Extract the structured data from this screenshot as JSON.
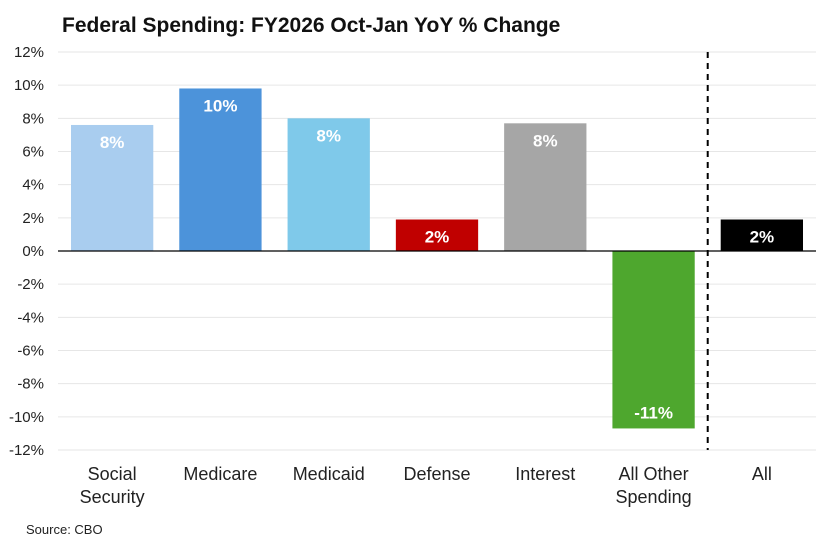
{
  "chart_data": {
    "type": "bar",
    "title": "Federal Spending: FY2026 Oct-Jan YoY % Change",
    "source": "Source: CBO",
    "categories": [
      [
        "Social",
        "Security"
      ],
      [
        "Medicare"
      ],
      [
        "Medicaid"
      ],
      [
        "Defense"
      ],
      [
        "Interest"
      ],
      [
        "All Other",
        "Spending"
      ],
      [
        "All"
      ]
    ],
    "values": [
      7.6,
      9.8,
      8.0,
      1.9,
      7.7,
      -10.7,
      1.9
    ],
    "data_labels": [
      "8%",
      "10%",
      "8%",
      "2%",
      "8%",
      "-11%",
      "2%"
    ],
    "colors": [
      "#a9cdef",
      "#4c93da",
      "#7fc9ea",
      "#c00000",
      "#a6a6a6",
      "#4ea72e",
      "#000000"
    ],
    "y_ticks": [
      12,
      10,
      8,
      6,
      4,
      2,
      0,
      -2,
      -4,
      -6,
      -8,
      -10,
      -12
    ],
    "y_tick_labels": [
      "12%",
      "10%",
      "8%",
      "6%",
      "4%",
      "2%",
      "0%",
      "-2%",
      "-4%",
      "-6%",
      "-8%",
      "-10%",
      "-12%"
    ],
    "ylim": [
      -12,
      12
    ],
    "xlabel": "",
    "ylabel": "",
    "grid": true,
    "separator_before_category": "All"
  }
}
